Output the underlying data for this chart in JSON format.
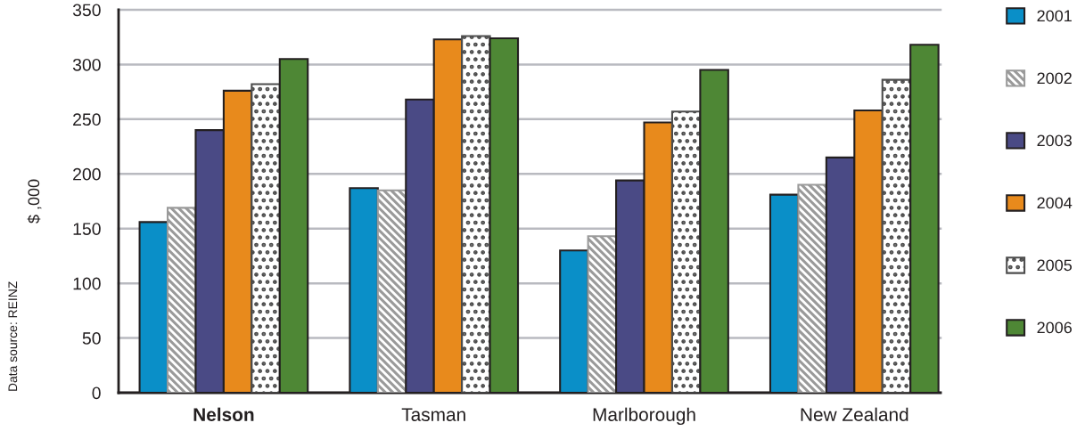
{
  "chart_data": {
    "type": "bar",
    "ylabel": "$ ,000",
    "categories": [
      "Nelson",
      "Tasman",
      "Marlborough",
      "New Zealand"
    ],
    "series": [
      {
        "name": "2001",
        "color": "#0a8fc8",
        "values": [
          156,
          187,
          130,
          181
        ]
      },
      {
        "name": "2002",
        "color": "#9a9a9a",
        "values": [
          169,
          185,
          143,
          190
        ]
      },
      {
        "name": "2003",
        "color": "#4a4a85",
        "values": [
          240,
          268,
          194,
          215
        ]
      },
      {
        "name": "2004",
        "color": "#e88a1c",
        "values": [
          276,
          323,
          247,
          258
        ]
      },
      {
        "name": "2005",
        "color": "#4d4d4d",
        "values": [
          282,
          326,
          257,
          286
        ]
      },
      {
        "name": "2006",
        "color": "#4e8735",
        "values": [
          305,
          324,
          295,
          318
        ]
      }
    ],
    "ylim": [
      0,
      350
    ],
    "yticks": [
      0,
      50,
      100,
      150,
      200,
      250,
      300,
      350
    ],
    "grid": "y",
    "legend": "right",
    "annotations": [
      "Data source: REINZ"
    ]
  }
}
